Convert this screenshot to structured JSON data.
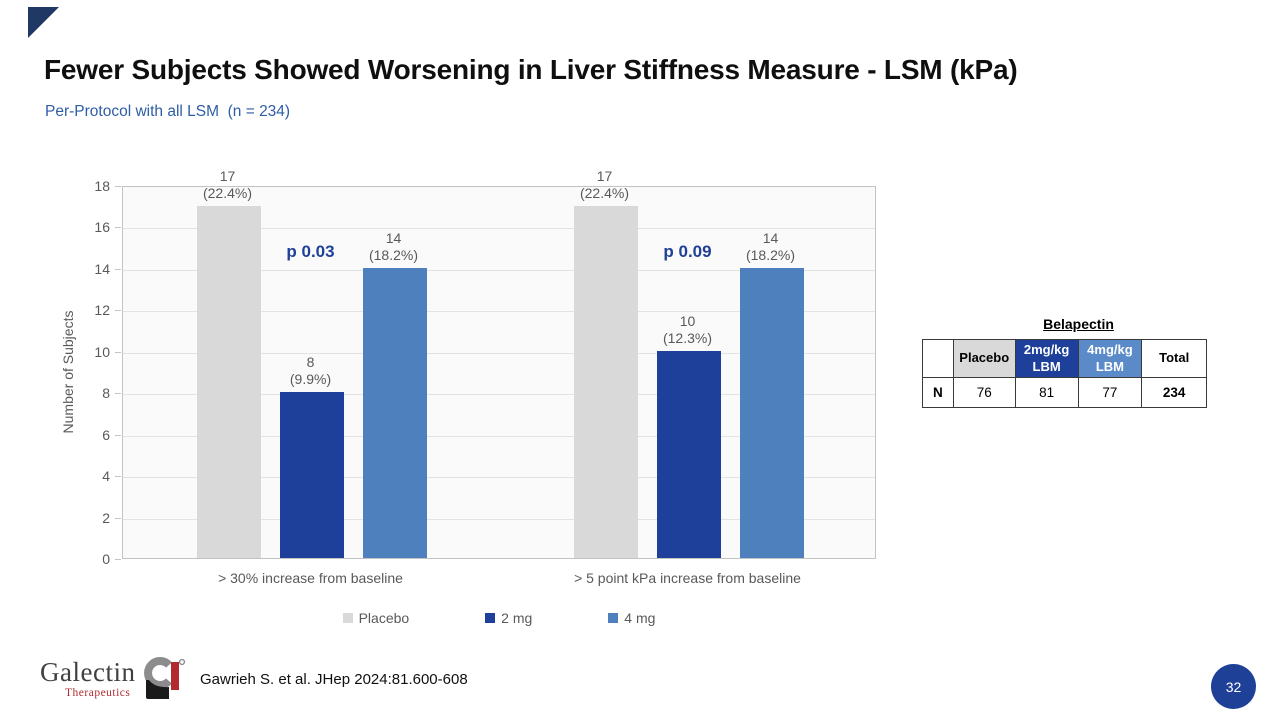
{
  "slide": {
    "title": "Fewer Subjects Showed Worsening in Liver Stiffness Measure - LSM (kPa)",
    "subtitle": "Per-Protocol with all LSM  (n = 234)"
  },
  "chart_data": {
    "type": "bar",
    "title": "",
    "xlabel": "",
    "ylabel": "Number of Subjects",
    "ylim": [
      0,
      18
    ],
    "ytick_step": 2,
    "grid": true,
    "legend_position": "bottom",
    "categories": [
      "> 30% increase from baseline",
      "> 5 point kPa increase from baseline"
    ],
    "series": [
      {
        "name": "Placebo",
        "color": "#D9D9D9",
        "values": [
          17,
          17
        ],
        "pct_labels": [
          "(22.4%)",
          "(22.4%)"
        ]
      },
      {
        "name": "2 mg",
        "color": "#1E409B",
        "values": [
          8,
          10
        ],
        "pct_labels": [
          "(9.9%)",
          "(12.3%)"
        ]
      },
      {
        "name": "4 mg",
        "color": "#4E80BD",
        "values": [
          14,
          14
        ],
        "pct_labels": [
          "(18.2%)",
          "(18.2%)"
        ]
      }
    ],
    "p_values": [
      {
        "label": "p 0.03",
        "category_index": 0
      },
      {
        "label": "p 0.09",
        "category_index": 1
      }
    ],
    "annotation_color": "#1F4097"
  },
  "side_table": {
    "title": "Belapectin",
    "columns": [
      "",
      "Placebo",
      "2mg/kg LBM",
      "4mg/kg LBM",
      "Total"
    ],
    "header_bg": [
      "#FFFFFF",
      "#D9D9D9",
      "#1E409B",
      "#5B8AC9",
      "#FFFFFF"
    ],
    "header_fg": [
      "#000000",
      "#000000",
      "#FFFFFF",
      "#FFFFFF",
      "#000000"
    ],
    "row_label": "N",
    "values": [
      "76",
      "81",
      "77",
      "234"
    ]
  },
  "footer": {
    "logo_name": "Galectin",
    "logo_sub": "Therapeutics",
    "citation": "Gawrieh S. et al. JHep 2024:81.600-608",
    "page_number": "32"
  },
  "colors": {
    "navy": "#1E409B",
    "mid_blue": "#4E80BD",
    "light_gray": "#D9D9D9",
    "text_gray": "#595959",
    "subtitle_blue": "#2E5DA6",
    "corner_triangle": "#1F3864",
    "page_badge": "#1F4097"
  }
}
